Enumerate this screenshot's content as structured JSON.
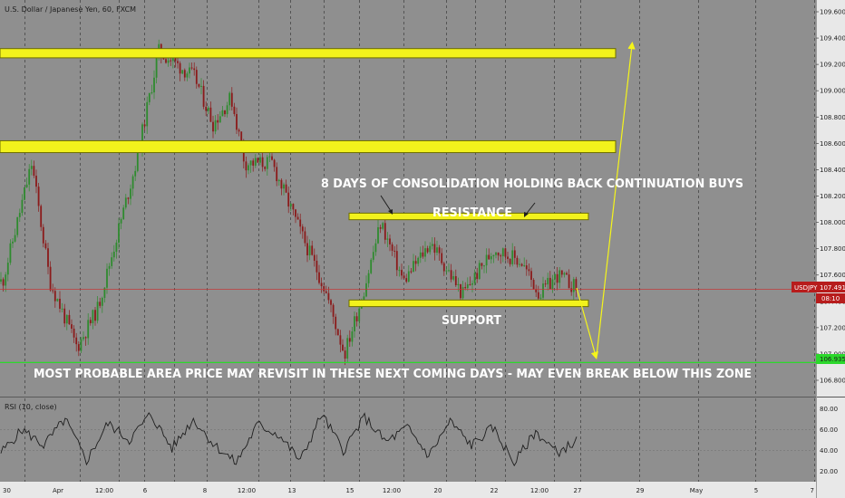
{
  "header": {
    "symbol_title": "U.S. Dollar / Japanese Yen, 60, FXCM"
  },
  "rsi": {
    "label": "RSI (10, close)"
  },
  "price_badge": {
    "symbol": "USDJPY",
    "price": "107.491",
    "countdown": "08:10",
    "green_level": "106.935"
  },
  "annotations": {
    "consolidation": "8 DAYS OF CONSOLIDATION HOLDING BACK CONTINUATION BUYS",
    "resistance": "RESISTANCE",
    "support": "SUPPORT",
    "bottom": "MOST PROBABLE AREA PRICE MAY REVISIT IN THESE NEXT COMING DAYS - MAY EVEN BREAK BELOW  THIS ZONE"
  },
  "colors": {
    "background": "#8f8f8f",
    "candle_up": "#2e8b2e",
    "candle_down": "#8b1a1a",
    "zone_fill": "#f2f21c",
    "zone_border": "#6e6e00",
    "projection": "#f5f51a",
    "current_price_line": "#c83232",
    "price_badge": "#b71c1c",
    "green_level": "#2cd82c",
    "rsi_line": "#1e1e1e"
  },
  "chart_data": {
    "type": "candlestick",
    "symbol": "USDJPY",
    "timeframe": "60",
    "source": "FXCM",
    "y_axis_ticks": [
      "109.600",
      "109.400",
      "109.200",
      "109.000",
      "108.800",
      "108.600",
      "108.400",
      "108.200",
      "108.000",
      "107.800",
      "107.600",
      "107.400",
      "107.200",
      "107.000",
      "106.800"
    ],
    "ylim": [
      106.75,
      109.65
    ],
    "x_axis_ticks": [
      "30",
      "Apr",
      "12:00",
      "6",
      "8",
      "12:00",
      "13",
      "15",
      "12:00",
      "20",
      "22",
      "12:00",
      "27",
      "29",
      "May",
      "5",
      "7"
    ],
    "price_path": [
      {
        "d": "Mar 30",
        "p": 107.55
      },
      {
        "d": "Apr 1",
        "p": 108.45
      },
      {
        "d": "Apr 2",
        "p": 107.55
      },
      {
        "d": "Apr 4",
        "p": 107.05
      },
      {
        "d": "Apr 5",
        "p": 107.35
      },
      {
        "d": "Apr 6",
        "p": 108.45
      },
      {
        "d": "Apr 7",
        "p": 109.3
      },
      {
        "d": "Apr 8",
        "p": 109.1
      },
      {
        "d": "Apr 9",
        "p": 108.75
      },
      {
        "d": "Apr 11",
        "p": 108.95
      },
      {
        "d": "Apr 12",
        "p": 108.45
      },
      {
        "d": "Apr 13",
        "p": 108.45
      },
      {
        "d": "Apr 14",
        "p": 107.95
      },
      {
        "d": "Apr 15",
        "p": 107.5
      },
      {
        "d": "Apr 16",
        "p": 107.0
      },
      {
        "d": "Apr 17",
        "p": 107.45
      },
      {
        "d": "Apr 18",
        "p": 108.0
      },
      {
        "d": "Apr 19",
        "p": 107.55
      },
      {
        "d": "Apr 20",
        "p": 107.85
      },
      {
        "d": "Apr 21",
        "p": 107.45
      },
      {
        "d": "Apr 22",
        "p": 107.8
      },
      {
        "d": "Apr 24",
        "p": 107.7
      },
      {
        "d": "Apr 25",
        "p": 107.45
      },
      {
        "d": "Apr 26",
        "p": 107.6
      },
      {
        "d": "Apr 27",
        "p": 107.49
      }
    ],
    "zones": [
      {
        "name": "upper-zone",
        "from": 109.25,
        "to": 109.32
      },
      {
        "name": "mid-zone",
        "from": 108.53,
        "to": 108.62
      },
      {
        "name": "resistance-zone",
        "from": 108.02,
        "to": 108.07
      },
      {
        "name": "support-zone",
        "from": 107.36,
        "to": 107.41
      }
    ],
    "current_price": 107.491,
    "green_level": 106.935,
    "rsi": {
      "name": "RSI (10, close)",
      "ticks": [
        "80.00",
        "60.00",
        "40.00",
        "20.00"
      ],
      "ylim": [
        10,
        90
      ],
      "path": [
        38,
        60,
        45,
        70,
        30,
        66,
        50,
        75,
        42,
        70,
        45,
        28,
        65,
        55,
        30,
        75,
        40,
        72,
        48,
        62,
        35,
        68,
        45,
        62,
        28,
        58,
        38,
        50
      ]
    }
  }
}
